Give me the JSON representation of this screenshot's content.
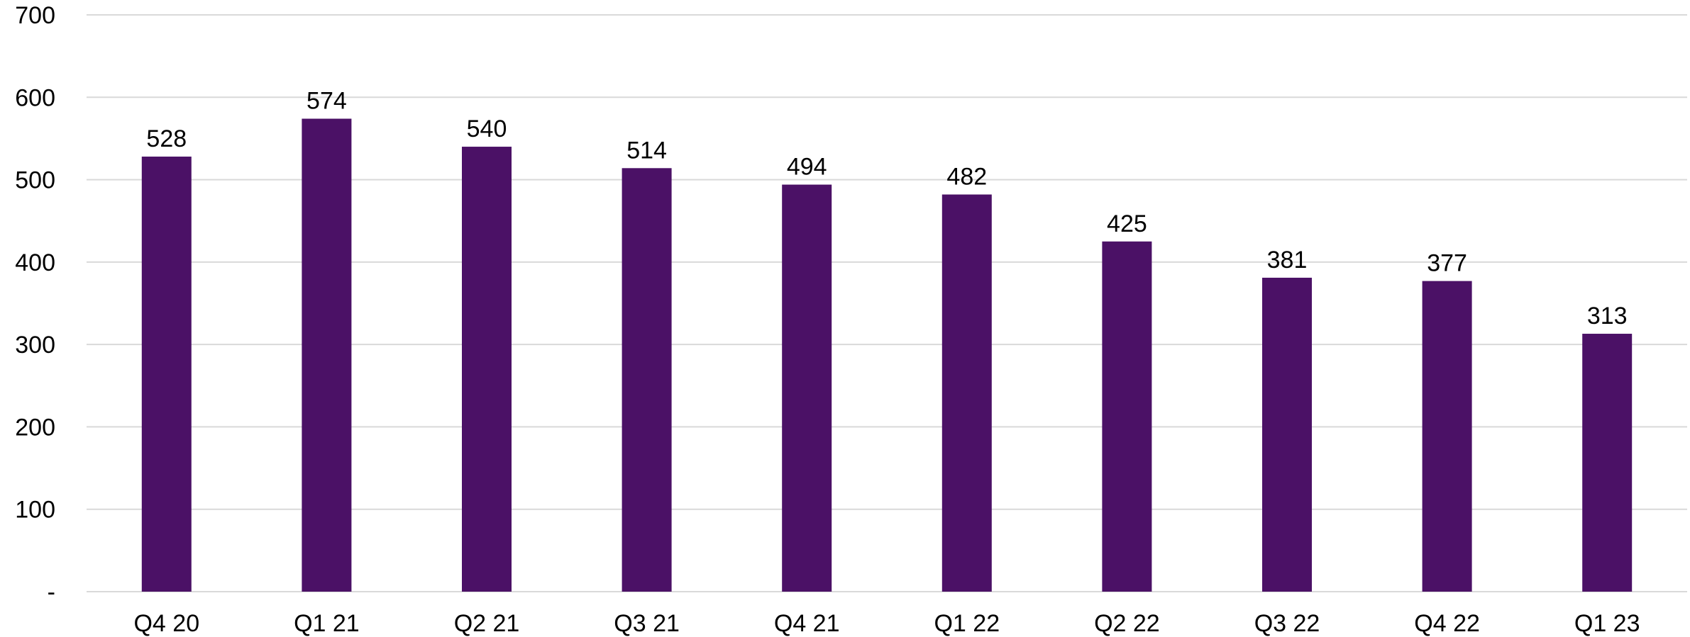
{
  "chart_data": {
    "type": "bar",
    "categories": [
      "Q4 20",
      "Q1 21",
      "Q2 21",
      "Q3 21",
      "Q4 21",
      "Q1 22",
      "Q2 22",
      "Q3 22",
      "Q4 22",
      "Q1 23"
    ],
    "values": [
      528,
      574,
      540,
      514,
      494,
      482,
      425,
      381,
      377,
      313
    ],
    "data_labels": [
      "528",
      "574",
      "540",
      "514",
      "494",
      "482",
      "425",
      "381",
      "377",
      "313"
    ],
    "yticks": [
      0,
      100,
      200,
      300,
      400,
      500,
      600,
      700
    ],
    "ytick_labels": [
      "-",
      "100",
      "200",
      "300",
      "400",
      "500",
      "600",
      "700"
    ],
    "ylim": [
      0,
      700
    ],
    "grid": true,
    "legend": "none",
    "bar_color": "#4b1166"
  }
}
